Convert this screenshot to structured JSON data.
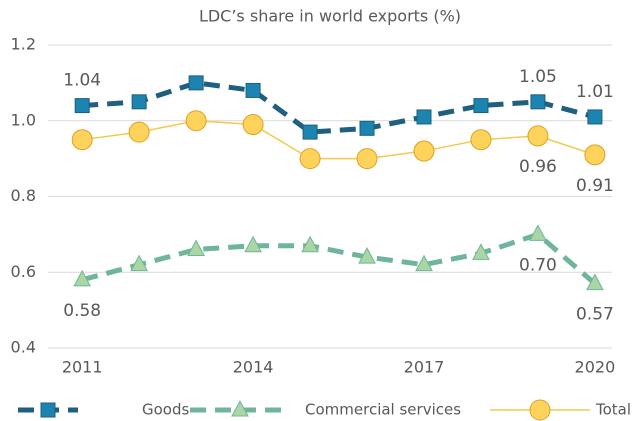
{
  "chart_data": {
    "type": "line",
    "title": "LDC’s share in world exports (%)",
    "x": [
      2011,
      2012,
      2013,
      2014,
      2015,
      2016,
      2017,
      2018,
      2019,
      2020
    ],
    "xlim": [
      2010.4,
      2020.3
    ],
    "xticks": [
      2011,
      2014,
      2017,
      2020
    ],
    "ylim": [
      0.4,
      1.2
    ],
    "yticks": [
      0.4,
      0.6,
      0.8,
      {
        "value": 1,
        "label": "1.0"
      },
      1.2
    ],
    "grid": true,
    "legend": "bottom",
    "series": [
      {
        "name": "Goods",
        "color": "#1f5f7f",
        "marker": "square",
        "marker_color": "#1b84b0",
        "dash": true,
        "values": [
          1.04,
          1.05,
          1.1,
          1.08,
          0.97,
          0.98,
          1.01,
          1.04,
          1.05,
          1.01
        ],
        "value_labels": [
          "1.04",
          null,
          null,
          null,
          null,
          null,
          null,
          null,
          "1.05",
          "1.01"
        ]
      },
      {
        "name": "Commercial services",
        "color": "#6fb59a",
        "marker": "triangle",
        "marker_color": "#a9d6a3",
        "dash": true,
        "values": [
          0.58,
          0.62,
          0.66,
          0.67,
          0.67,
          0.64,
          0.62,
          0.65,
          0.7,
          0.57
        ],
        "value_labels": [
          "0.58",
          null,
          null,
          null,
          null,
          null,
          null,
          null,
          "0.70",
          "0.57"
        ]
      },
      {
        "name": "Total",
        "color": "#f2c94c",
        "marker": "circle",
        "marker_color": "#fdd35c",
        "dash": false,
        "values": [
          0.95,
          0.97,
          1.0,
          0.99,
          0.9,
          0.9,
          0.92,
          0.95,
          0.96,
          0.91
        ],
        "value_labels": [
          null,
          null,
          null,
          null,
          null,
          null,
          null,
          null,
          "0.96",
          "0.91"
        ]
      }
    ]
  }
}
